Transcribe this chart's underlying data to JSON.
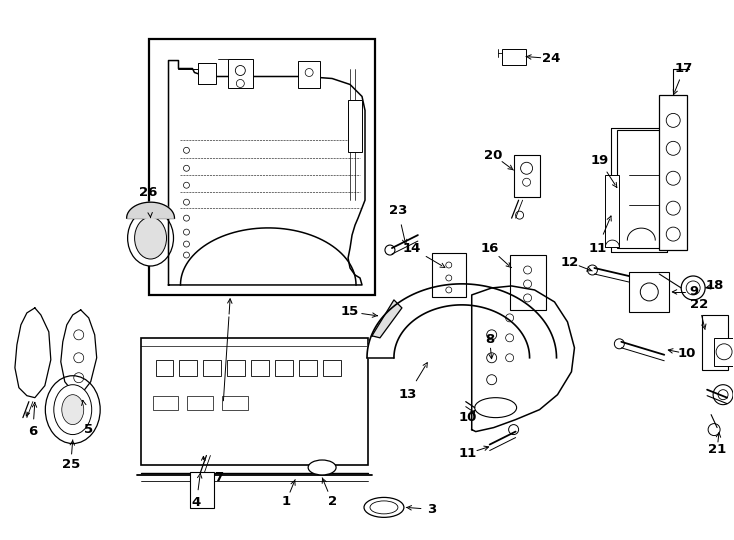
{
  "bg_color": "#ffffff",
  "fig_width": 7.34,
  "fig_height": 5.4,
  "dpi": 100
}
